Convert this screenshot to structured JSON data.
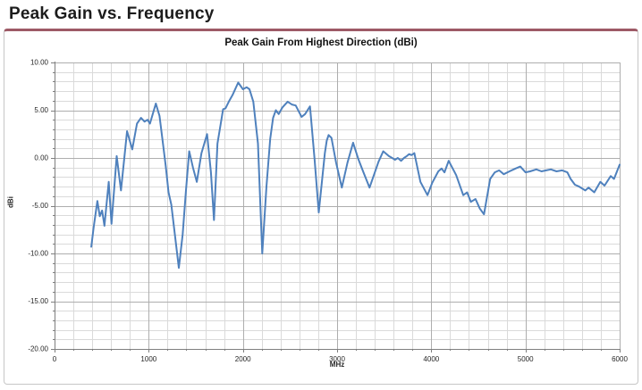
{
  "page": {
    "heading": "Peak Gain vs. Frequency"
  },
  "chart": {
    "title": "Peak Gain From Highest Direction (dBi)",
    "y_axis_title": "dBi",
    "x_axis_title": "MHz",
    "colors": {
      "accent_rule": "#9d5a66",
      "line": "#4f81bd",
      "grid_minor": "#dadada",
      "grid_major": "#aeaeae",
      "axis": "#7f7f7f",
      "tick_text": "#262626"
    }
  },
  "chart_data": {
    "type": "line",
    "title": "Peak Gain From Highest Direction (dBi)",
    "xlabel": "MHz",
    "ylabel": "dBi",
    "xlim": [
      0,
      6000
    ],
    "ylim": [
      -20,
      10
    ],
    "xticks": [
      0,
      1000,
      2000,
      3000,
      4000,
      5000,
      6000
    ],
    "xtick_labels": [
      "0",
      "1000",
      "2000",
      "3000",
      "4000",
      "5000",
      "6000"
    ],
    "xticks_minor_step": 200,
    "yticks": [
      10,
      5,
      0,
      -5,
      -10,
      -15,
      -20
    ],
    "ytick_labels": [
      "10.00",
      "5.00",
      "0.00",
      "-5.00",
      "-10.00",
      "-15.00",
      "-20.00"
    ],
    "yticks_minor_step": 1,
    "grid": "on",
    "legend": "none",
    "x": [
      390,
      415,
      455,
      480,
      505,
      530,
      575,
      605,
      660,
      705,
      770,
      825,
      875,
      918,
      956,
      987,
      1013,
      1076,
      1115,
      1145,
      1180,
      1210,
      1240,
      1320,
      1360,
      1395,
      1430,
      1470,
      1510,
      1560,
      1620,
      1660,
      1693,
      1730,
      1763,
      1790,
      1815,
      1850,
      1890,
      1950,
      2000,
      2040,
      2070,
      2110,
      2160,
      2205,
      2250,
      2290,
      2320,
      2350,
      2380,
      2420,
      2475,
      2520,
      2560,
      2623,
      2660,
      2712,
      2760,
      2805,
      2870,
      2890,
      2910,
      2940,
      2990,
      3050,
      3110,
      3170,
      3225,
      3280,
      3345,
      3440,
      3490,
      3550,
      3585,
      3615,
      3645,
      3680,
      3710,
      3740,
      3765,
      3790,
      3820,
      3885,
      3960,
      4010,
      4075,
      4110,
      4140,
      4185,
      4265,
      4340,
      4380,
      4420,
      4470,
      4515,
      4560,
      4625,
      4675,
      4720,
      4770,
      4830,
      4895,
      4945,
      5000,
      5050,
      5115,
      5170,
      5220,
      5270,
      5330,
      5390,
      5445,
      5480,
      5525,
      5570,
      5635,
      5670,
      5730,
      5795,
      5840,
      5905,
      5940,
      6000
    ],
    "y": [
      -9.3,
      -7.3,
      -4.5,
      -6.1,
      -5.5,
      -7.1,
      -2.5,
      -6.9,
      0.2,
      -3.4,
      2.8,
      0.9,
      3.6,
      4.2,
      3.8,
      4.0,
      3.6,
      5.7,
      4.4,
      2.0,
      -0.8,
      -3.6,
      -4.9,
      -11.5,
      -8.0,
      -3.5,
      0.7,
      -1.0,
      -2.5,
      0.5,
      2.5,
      -1.5,
      -6.5,
      1.5,
      3.5,
      5.1,
      5.2,
      5.9,
      6.6,
      7.9,
      7.2,
      7.4,
      7.2,
      5.9,
      1.5,
      -10.0,
      -3.0,
      2.0,
      4.2,
      5.0,
      4.6,
      5.3,
      5.9,
      5.6,
      5.5,
      4.3,
      4.6,
      5.4,
      0.0,
      -5.7,
      0.5,
      1.8,
      2.4,
      2.1,
      -0.5,
      -3.1,
      -0.5,
      1.6,
      -0.1,
      -1.5,
      -3.1,
      -0.4,
      0.7,
      0.2,
      0.0,
      -0.2,
      0.0,
      -0.3,
      0.0,
      0.2,
      0.4,
      0.3,
      0.5,
      -2.5,
      -3.9,
      -2.6,
      -1.4,
      -1.1,
      -1.5,
      -0.3,
      -1.8,
      -3.9,
      -3.6,
      -4.6,
      -4.3,
      -5.3,
      -5.9,
      -2.2,
      -1.5,
      -1.3,
      -1.7,
      -1.4,
      -1.1,
      -0.9,
      -1.5,
      -1.4,
      -1.2,
      -1.4,
      -1.3,
      -1.2,
      -1.4,
      -1.3,
      -1.5,
      -2.2,
      -2.8,
      -3.0,
      -3.4,
      -3.1,
      -3.6,
      -2.5,
      -2.9,
      -1.9,
      -2.2,
      -0.7
    ]
  }
}
